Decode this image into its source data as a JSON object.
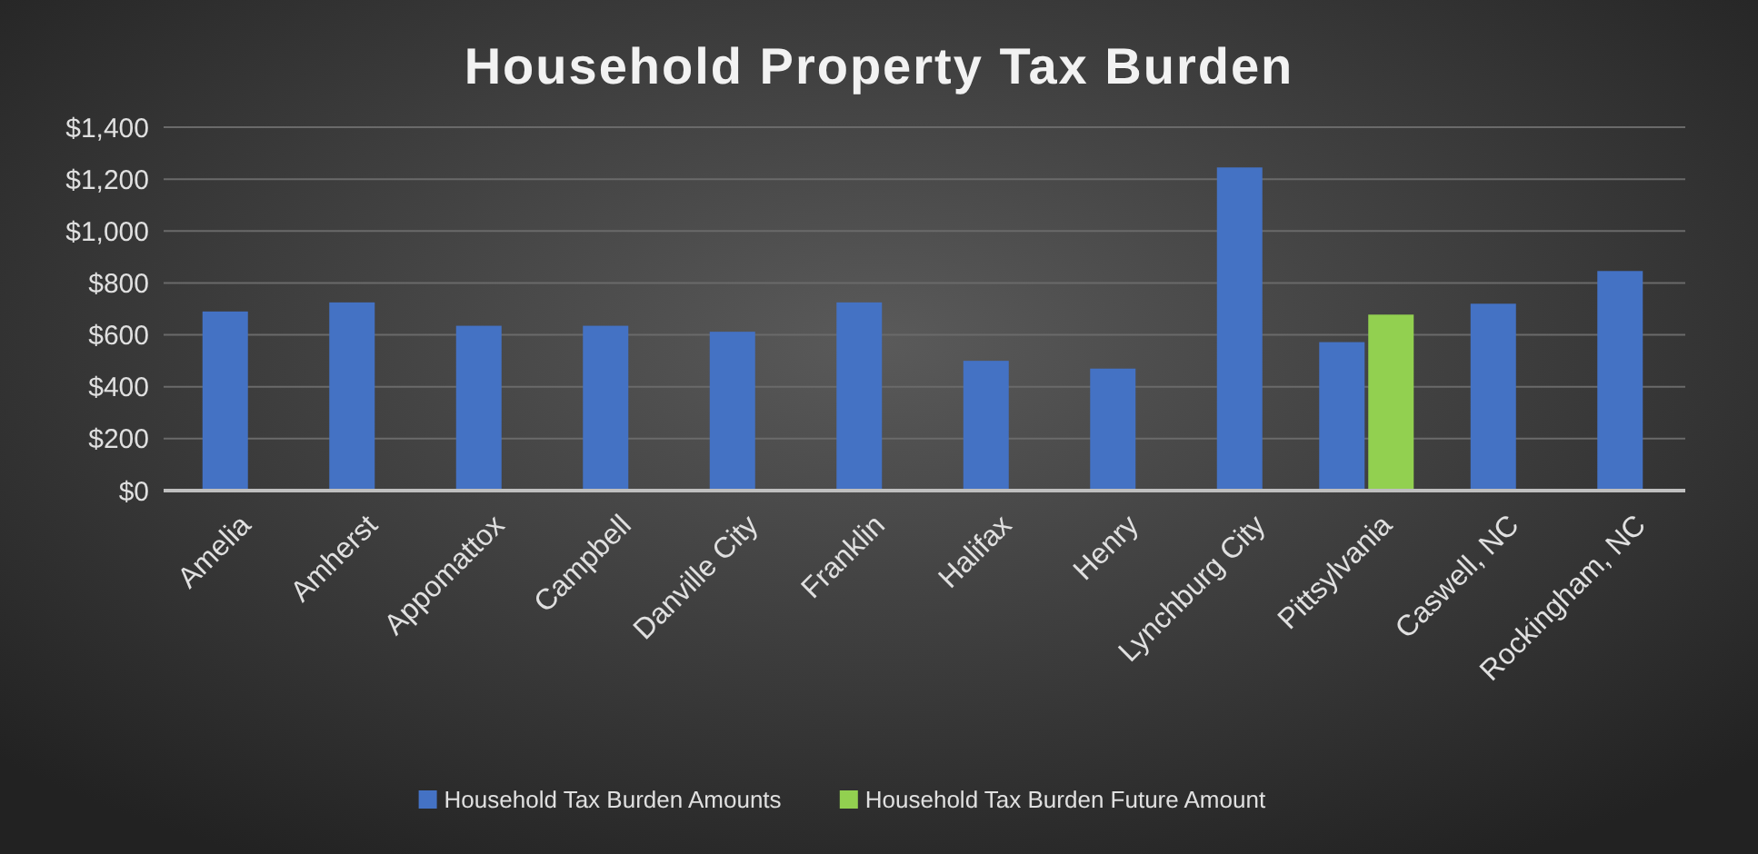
{
  "chart_data": {
    "type": "bar",
    "title": "Household Property Tax Burden",
    "categories": [
      "Amelia",
      "Amherst",
      "Appomattox",
      "Campbell",
      "Danville City",
      "Franklin",
      "Halifax",
      "Henry",
      "Lynchburg City",
      "Pittsylvania",
      "Caswell, NC",
      "Rockingham, NC"
    ],
    "series": [
      {
        "name": "Household Tax Burden Amounts",
        "color": "#4472c4",
        "values": [
          690,
          725,
          635,
          635,
          612,
          725,
          500,
          470,
          1245,
          572,
          720,
          846
        ]
      },
      {
        "name": "Household Tax Burden Future Amount",
        "color": "#92d050",
        "values": [
          null,
          null,
          null,
          null,
          null,
          null,
          null,
          null,
          null,
          678,
          null,
          null
        ]
      }
    ],
    "ylim": [
      0,
      1400
    ],
    "yticks": [
      {
        "value": 0,
        "label": "$0"
      },
      {
        "value": 200,
        "label": "$200"
      },
      {
        "value": 400,
        "label": "$400"
      },
      {
        "value": 600,
        "label": "$600"
      },
      {
        "value": 800,
        "label": "$800"
      },
      {
        "value": 1000,
        "label": "$1,000"
      },
      {
        "value": 1200,
        "label": "$1,200"
      },
      {
        "value": 1400,
        "label": "$1,400"
      }
    ],
    "grid": "y",
    "legend": "bottom"
  }
}
